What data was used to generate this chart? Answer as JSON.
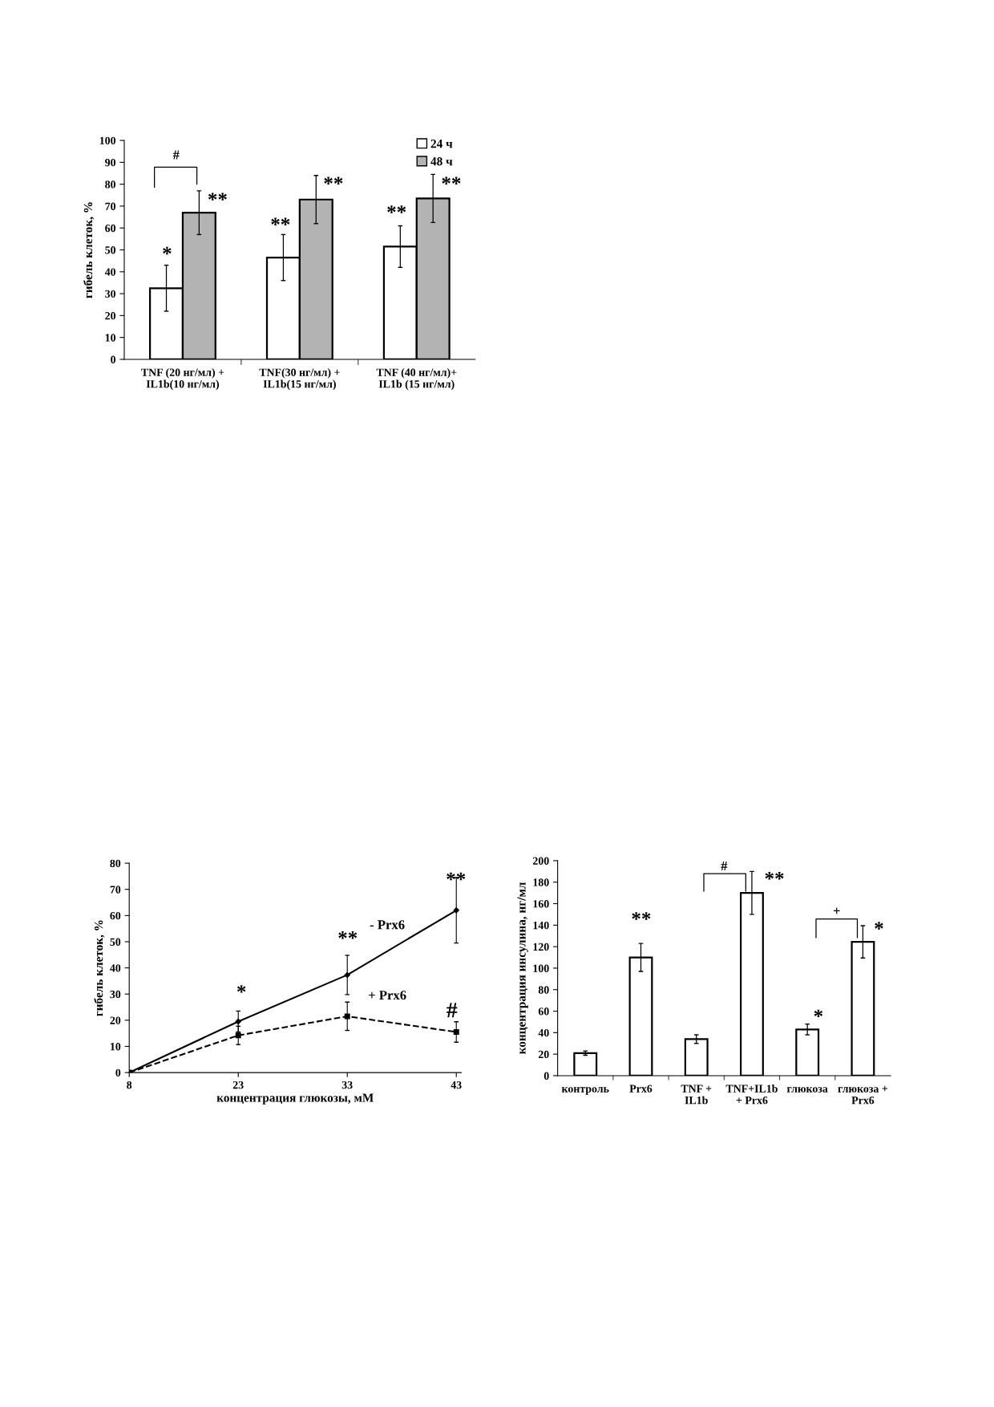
{
  "chart_data": [
    {
      "type": "bar",
      "ylabel": "гибель клеток, %",
      "categories": [
        "TNF (20 нг/мл) +\nIL1b(10 нг/мл)",
        "TNF(30 нг/мл) +\nIL1b(15 нг/мл)",
        "TNF (40 нг/мл)+\nIL1b (15 нг/мл)"
      ],
      "series": [
        {
          "name": "24 ч",
          "color": "#ffffff",
          "values": [
            32.5,
            46.5,
            51.5
          ],
          "errors": [
            10.5,
            10.5,
            9.5
          ]
        },
        {
          "name": "48 ч",
          "color": "#b3b3b3",
          "values": [
            67,
            73,
            73.5
          ],
          "errors": [
            10,
            11,
            11
          ]
        }
      ],
      "ylim": [
        0,
        100
      ],
      "yticks": [
        0,
        10,
        20,
        30,
        40,
        50,
        60,
        70,
        80,
        90,
        100
      ],
      "grid": false,
      "legend": "top right",
      "annotations": [
        "#",
        "*",
        "**",
        "**",
        "**",
        "**",
        "**"
      ]
    },
    {
      "type": "line",
      "xlabel": "концентрация глюкозы, мМ",
      "ylabel": "гибель клеток, %",
      "categories": [
        "8",
        "23",
        "33",
        "43"
      ],
      "series": [
        {
          "name": "- Prx6",
          "color": "#000000",
          "values": [
            0,
            19.5,
            37.3,
            62
          ],
          "errors": [
            null,
            4,
            7.5,
            12.5
          ],
          "marker": "diamond",
          "line_style": "solid"
        },
        {
          "name": "+ Prx6",
          "color": "#000000",
          "values": [
            0,
            14.2,
            21.5,
            15.5
          ],
          "errors": [
            null,
            3.5,
            5.4,
            3.9
          ],
          "marker": "square",
          "line_style": "dashed"
        }
      ],
      "ylim": [
        0,
        80
      ],
      "yticks": [
        0,
        10,
        20,
        30,
        40,
        50,
        60,
        70,
        80
      ],
      "grid": false,
      "legend": false,
      "annotations": [
        "*",
        "**",
        "**",
        "#"
      ]
    },
    {
      "type": "bar",
      "ylabel": "концентрация инсулина, нг/мл",
      "categories": [
        "контроль",
        "Prx6",
        "TNF +\nIL1b",
        "TNF+IL1b\n+ Prx6",
        "глюкоза",
        "глюкоза +\nPrx6"
      ],
      "values": [
        21,
        110,
        34,
        170,
        43,
        124.5
      ],
      "errors": [
        2,
        13,
        4,
        20,
        5,
        15
      ],
      "color": "#ffffff",
      "ylim": [
        0,
        200
      ],
      "yticks": [
        0,
        20,
        40,
        60,
        80,
        100,
        120,
        140,
        160,
        180,
        200
      ],
      "grid": false,
      "annotations": [
        "#",
        "+",
        "**",
        "**",
        "*",
        "*"
      ]
    }
  ]
}
